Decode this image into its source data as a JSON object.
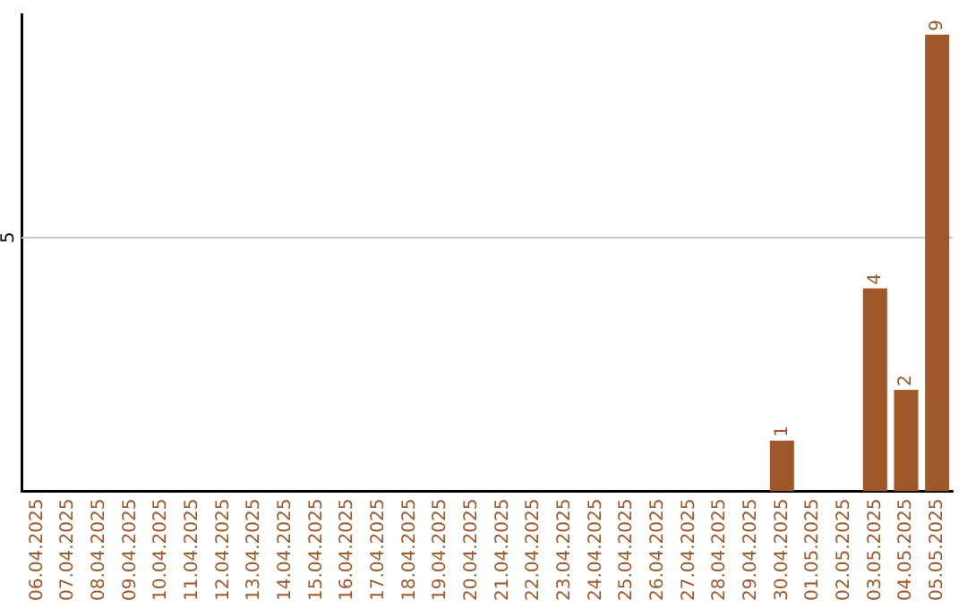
{
  "chart_data": {
    "type": "bar",
    "categories": [
      "06.04.2025",
      "07.04.2025",
      "08.04.2025",
      "09.04.2025",
      "10.04.2025",
      "11.04.2025",
      "12.04.2025",
      "13.04.2025",
      "14.04.2025",
      "15.04.2025",
      "16.04.2025",
      "17.04.2025",
      "18.04.2025",
      "19.04.2025",
      "20.04.2025",
      "21.04.2025",
      "22.04.2025",
      "23.04.2025",
      "24.04.2025",
      "25.04.2025",
      "26.04.2025",
      "27.04.2025",
      "28.04.2025",
      "29.04.2025",
      "30.04.2025",
      "01.05.2025",
      "02.05.2025",
      "03.05.2025",
      "04.05.2025",
      "05.05.2025"
    ],
    "values": [
      null,
      null,
      null,
      null,
      null,
      null,
      null,
      null,
      null,
      null,
      null,
      null,
      null,
      null,
      null,
      null,
      null,
      null,
      null,
      null,
      null,
      null,
      null,
      null,
      1,
      null,
      null,
      4,
      2,
      9
    ],
    "value_labels": [
      null,
      null,
      null,
      null,
      null,
      null,
      null,
      null,
      null,
      null,
      null,
      null,
      null,
      null,
      null,
      null,
      null,
      null,
      null,
      null,
      null,
      null,
      null,
      null,
      "1",
      null,
      null,
      "4",
      "2",
      "9"
    ],
    "color": "#a0582a",
    "ylim": [
      0,
      9.4
    ],
    "ref_lines": [
      {
        "axis": "y",
        "value": 5,
        "label": "5",
        "color": "#c8c8c8"
      }
    ],
    "legend": false
  }
}
